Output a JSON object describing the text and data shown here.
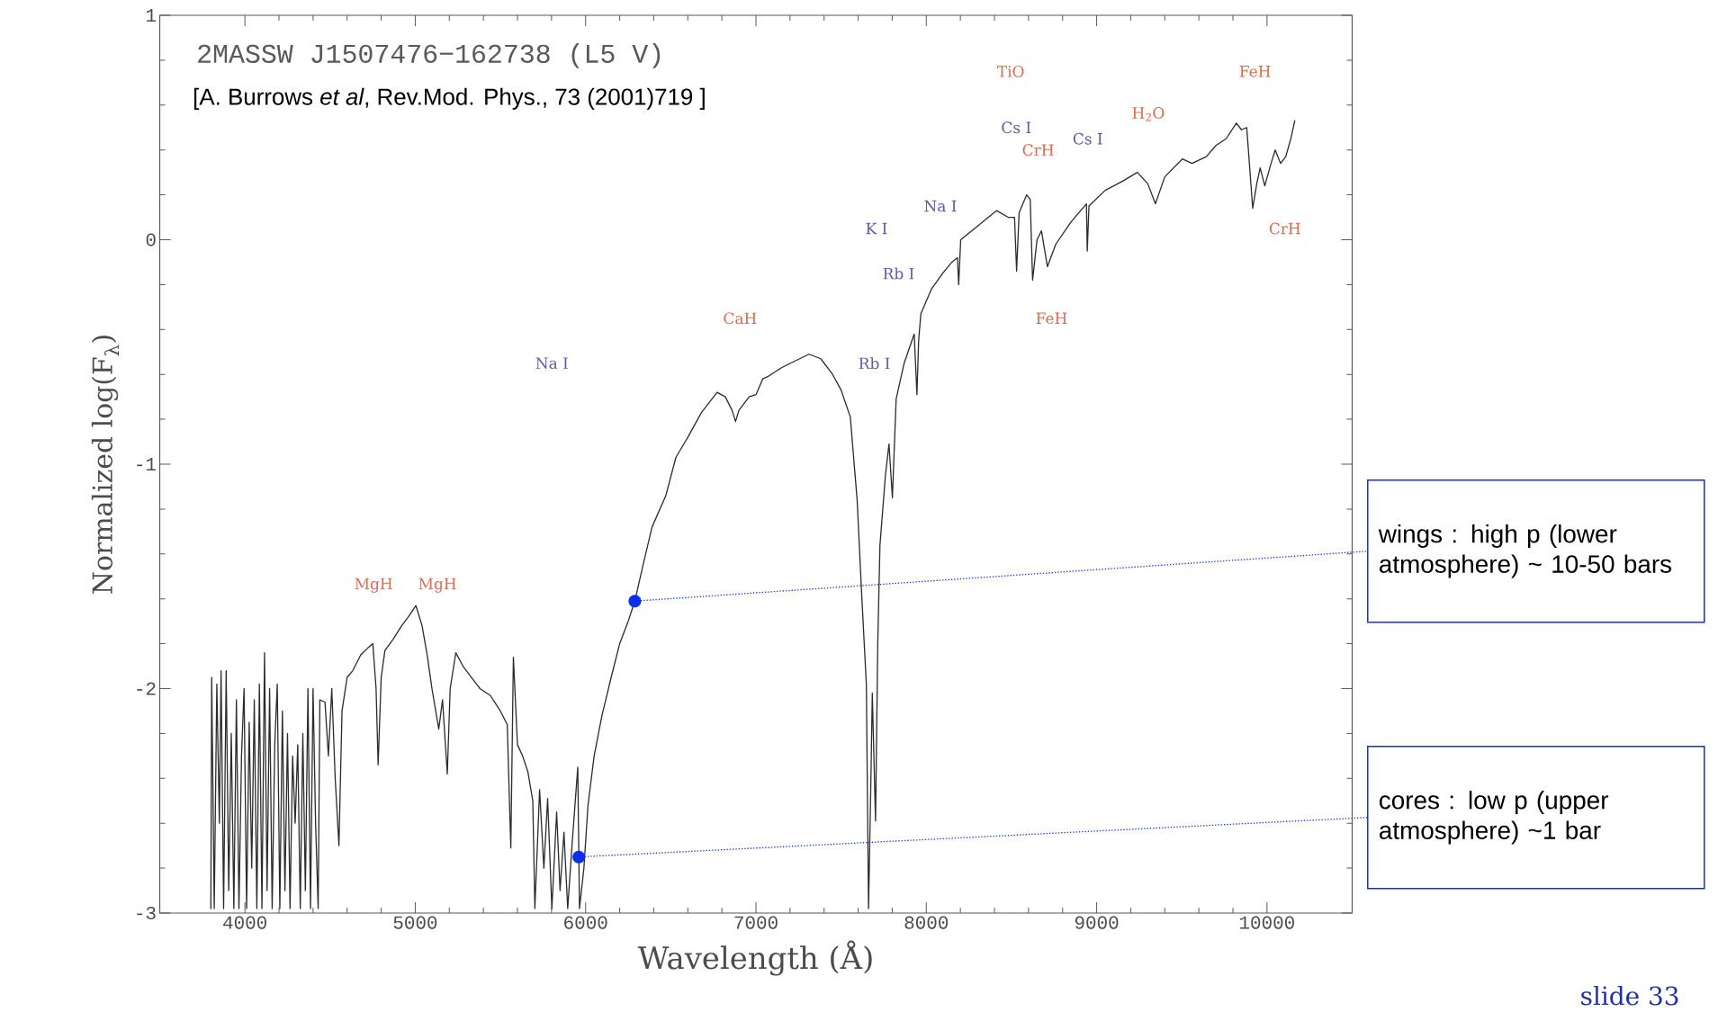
{
  "chart_data": {
    "type": "line",
    "xlabel": "Wavelength (Å)",
    "ylabel": "Normalized log(F$_{λ}$)",
    "xlim": [
      3500,
      10500
    ],
    "ylim": [
      -3,
      1
    ],
    "xticks": [
      4000,
      5000,
      6000,
      7000,
      8000,
      9000,
      10000
    ],
    "yticks": [
      -3,
      -2,
      -1,
      0,
      1
    ],
    "grid": false,
    "series": [
      {
        "color": "#2b2b2b",
        "x": [
          3800,
          3805,
          3820,
          3835,
          3850,
          3860,
          3875,
          3890,
          3905,
          3920,
          3935,
          3950,
          3965,
          3980,
          3995,
          4010,
          4025,
          4040,
          4055,
          4070,
          4085,
          4100,
          4115,
          4130,
          4145,
          4160,
          4175,
          4190,
          4205,
          4220,
          4235,
          4250,
          4265,
          4280,
          4295,
          4310,
          4325,
          4340,
          4355,
          4370,
          4385,
          4400,
          4415,
          4430,
          4440,
          4470,
          4490,
          4510,
          4530,
          4552,
          4570,
          4600,
          4633,
          4680,
          4720,
          4751,
          4770,
          4782,
          4800,
          4822,
          4870,
          4920,
          4960,
          5004,
          5040,
          5070,
          5098,
          5138,
          5160,
          5188,
          5205,
          5238,
          5280,
          5330,
          5380,
          5440,
          5500,
          5540,
          5561,
          5576,
          5600,
          5630,
          5661,
          5690,
          5702,
          5730,
          5755,
          5777,
          5802,
          5830,
          5850,
          5873,
          5895,
          5920,
          5954,
          5964,
          5990,
          6014,
          6050,
          6096,
          6150,
          6200,
          6250,
          6289,
          6340,
          6390,
          6471,
          6530,
          6600,
          6680,
          6772,
          6820,
          6860,
          6880,
          6900,
          6960,
          7000,
          7040,
          7069,
          7150,
          7230,
          7311,
          7380,
          7450,
          7500,
          7554,
          7594,
          7620,
          7648,
          7661,
          7675,
          7683,
          7702,
          7715,
          7728,
          7760,
          7781,
          7801,
          7823,
          7870,
          7929,
          7945,
          7955,
          7968,
          8030,
          8096,
          8150,
          8183,
          8190,
          8202,
          8300,
          8413,
          8480,
          8518,
          8530,
          8545,
          8589,
          8610,
          8624,
          8650,
          8676,
          8711,
          8760,
          8850,
          8940,
          8945,
          8955,
          9050,
          9150,
          9239,
          9300,
          9345,
          9400,
          9503,
          9560,
          9644,
          9700,
          9760,
          9820,
          9850,
          9881,
          9916,
          9940,
          9960,
          9987,
          10020,
          10048,
          10080,
          10110,
          10140,
          10163
        ],
        "values": [
          -2.98,
          -1.95,
          -2.98,
          -1.98,
          -2.6,
          -1.92,
          -2.98,
          -1.92,
          -2.9,
          -2.2,
          -2.98,
          -2.05,
          -2.98,
          -2.3,
          -2.0,
          -2.98,
          -2.15,
          -2.8,
          -2.05,
          -2.98,
          -1.98,
          -2.98,
          -1.84,
          -2.9,
          -2.0,
          -2.98,
          -2.25,
          -1.98,
          -2.98,
          -2.1,
          -2.9,
          -2.2,
          -2.98,
          -2.3,
          -2.6,
          -2.25,
          -2.98,
          -2.2,
          -2.9,
          -2.0,
          -2.98,
          -2.0,
          -2.6,
          -2.98,
          -2.05,
          -2.06,
          -2.3,
          -2.0,
          -2.4,
          -2.7,
          -2.1,
          -1.95,
          -1.92,
          -1.85,
          -1.82,
          -1.8,
          -2.0,
          -2.34,
          -1.95,
          -1.83,
          -1.78,
          -1.72,
          -1.68,
          -1.63,
          -1.72,
          -1.85,
          -2.0,
          -2.18,
          -2.05,
          -2.38,
          -2.0,
          -1.84,
          -1.9,
          -1.95,
          -2.0,
          -2.03,
          -2.1,
          -2.16,
          -2.71,
          -1.86,
          -2.25,
          -2.3,
          -2.37,
          -2.5,
          -2.98,
          -2.45,
          -2.8,
          -2.49,
          -2.98,
          -2.55,
          -2.9,
          -2.64,
          -2.98,
          -2.7,
          -2.35,
          -2.98,
          -2.8,
          -2.52,
          -2.3,
          -2.12,
          -1.95,
          -1.8,
          -1.7,
          -1.61,
          -1.44,
          -1.28,
          -1.14,
          -0.97,
          -0.88,
          -0.77,
          -0.68,
          -0.7,
          -0.76,
          -0.81,
          -0.76,
          -0.7,
          -0.69,
          -0.62,
          -0.61,
          -0.57,
          -0.54,
          -0.51,
          -0.53,
          -0.6,
          -0.67,
          -0.79,
          -1.16,
          -1.57,
          -1.98,
          -2.98,
          -2.4,
          -2.02,
          -2.59,
          -1.8,
          -1.36,
          -1.05,
          -0.91,
          -1.15,
          -0.71,
          -0.55,
          -0.42,
          -0.69,
          -0.45,
          -0.33,
          -0.22,
          -0.15,
          -0.1,
          -0.08,
          -0.2,
          0.0,
          0.06,
          0.13,
          0.1,
          0.1,
          -0.14,
          0.12,
          0.2,
          0.18,
          -0.18,
          0.0,
          0.04,
          -0.12,
          -0.02,
          0.08,
          0.16,
          -0.05,
          0.15,
          0.22,
          0.26,
          0.3,
          0.25,
          0.16,
          0.28,
          0.36,
          0.34,
          0.37,
          0.42,
          0.45,
          0.52,
          0.49,
          0.5,
          0.14,
          0.25,
          0.32,
          0.24,
          0.33,
          0.4,
          0.34,
          0.37,
          0.45,
          0.53
        ]
      }
    ],
    "annotations": [
      "2MASSW J1507476−162738 (L5 V)",
      "[A. Burrows *et al*, Rev.Mod. Phys., 73 (2001)719 ]",
      "slide 33",
      "MgH",
      "MgH",
      "Na I",
      "CaH",
      "K I",
      "Rb I",
      "Rb I",
      "Na I",
      "TiO",
      "Cs I",
      "CrH",
      "Cs I",
      "H$_{2}$O",
      "FeH",
      "FeH",
      "CrH",
      {
        "text": "wings :   high p (lower atmosphere) ~ 10-50 bars",
        "x": 6289,
        "y": -1.61
      },
      {
        "text": "cores : low p (upper atmosphere) ~1 bar",
        "x": 5960,
        "y": -2.75
      }
    ]
  }
}
